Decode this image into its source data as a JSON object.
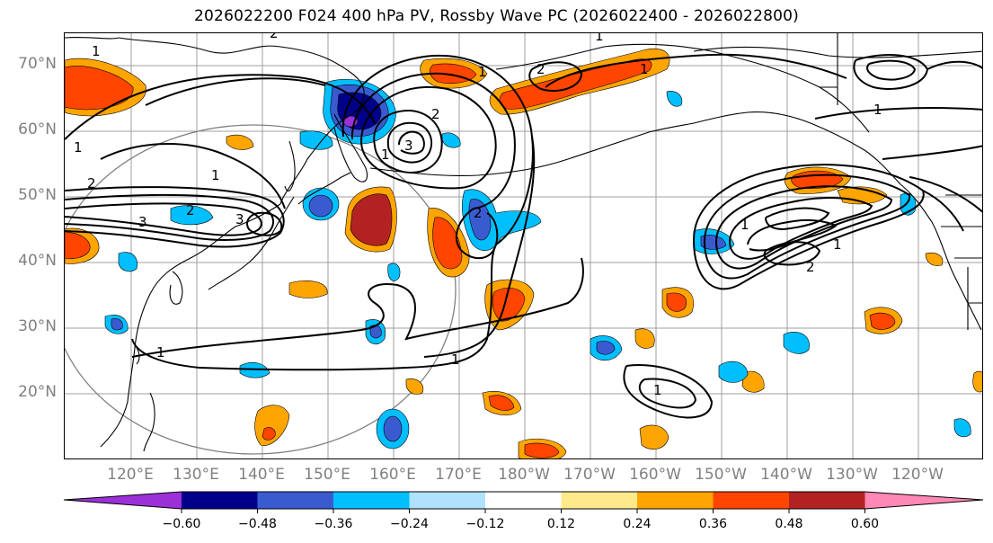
{
  "title": "2026022200 F024 400 hPa PV, Rossby Wave PC (2026022400 - 2026022800)",
  "latitude_labels": [
    "70°N",
    "60°N",
    "50°N",
    "40°N",
    "30°N",
    "20°N"
  ],
  "longitude_labels": [
    "120°E",
    "130°E",
    "140°E",
    "150°E",
    "160°E",
    "170°E",
    "180°W",
    "170°W",
    "160°W",
    "150°W",
    "140°W",
    "130°W",
    "120°W"
  ],
  "colorbar": {
    "tick_labels": [
      "−0.60",
      "−0.48",
      "−0.36",
      "−0.24",
      "−0.12",
      "0.12",
      "0.24",
      "0.36",
      "0.48",
      "0.60"
    ],
    "colors": [
      "#9b30d9",
      "#00008b",
      "#3a5bd0",
      "#00bfff",
      "#b0e2ff",
      "#ffffff",
      "#ffe98a",
      "#ffa500",
      "#ff4500",
      "#b22222",
      "#ff88b4"
    ]
  },
  "contour_labels": [
    "1",
    "2",
    "3",
    "1",
    "2",
    "3",
    "1",
    "2",
    "1",
    "1",
    "2",
    "3",
    "1",
    "2",
    "1",
    "1",
    "1",
    "2",
    "1",
    "1",
    "2",
    "1",
    "1"
  ],
  "colors": {
    "contour": "#000000",
    "grid": "#808080",
    "coast": "#000000",
    "frame": "#000000"
  }
}
